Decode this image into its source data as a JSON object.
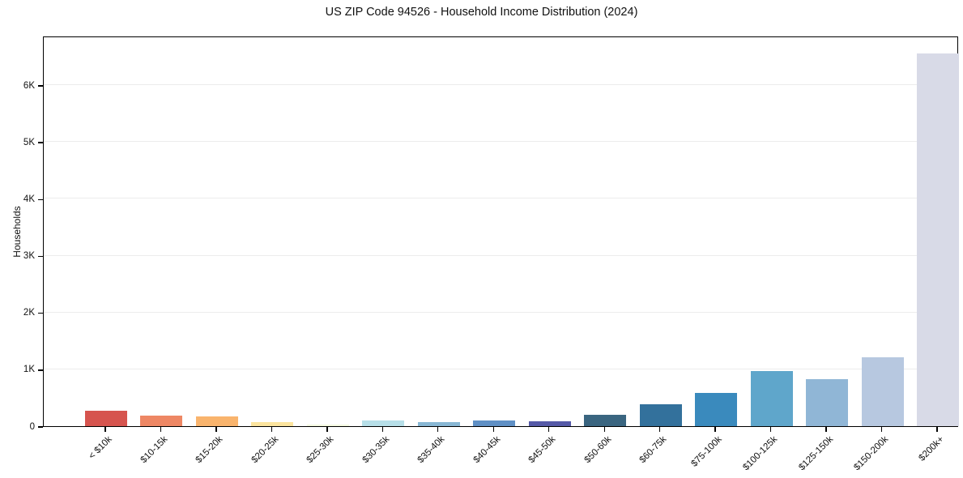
{
  "title": "US ZIP Code 94526 - Household Income Distribution (2024)",
  "chart_data": {
    "type": "bar",
    "title": "US ZIP Code 94526 - Household Income Distribution (2024)",
    "xlabel": "",
    "ylabel": "Households",
    "ylim": [
      0,
      6870
    ],
    "grid": "horizontal-light",
    "legend": "none",
    "categories": [
      "< $10k",
      "$10-15k",
      "$15-20k",
      "$20-25k",
      "$25-30k",
      "$30-35k",
      "$35-40k",
      "$40-45k",
      "$45-50k",
      "$50-60k",
      "$60-75k",
      "$75-100k",
      "$100-125k",
      "$125-150k",
      "$150-200k",
      "$200k+"
    ],
    "values": [
      270,
      180,
      165,
      75,
      25,
      100,
      65,
      105,
      90,
      205,
      390,
      590,
      970,
      820,
      1210,
      6550
    ],
    "bar_colors": [
      "#d6544e",
      "#ee8764",
      "#f9b46d",
      "#fce49e",
      "#f4f9e0",
      "#b7dfe8",
      "#88b7d4",
      "#6090c5",
      "#5559a7",
      "#3a6580",
      "#33719c",
      "#3a8abd",
      "#5fa6cb",
      "#90b6d6",
      "#b7c8e0",
      "#d8dae7"
    ],
    "ytick_values": [
      0,
      1000,
      2000,
      3000,
      4000,
      5000,
      6000
    ],
    "ytick_labels": [
      "0",
      "1K",
      "2K",
      "3K",
      "4K",
      "5K",
      "6K"
    ],
    "colors": {
      "grid": "#ececec",
      "axis": "#000000",
      "text": "#111111",
      "background": "#ffffff"
    }
  }
}
